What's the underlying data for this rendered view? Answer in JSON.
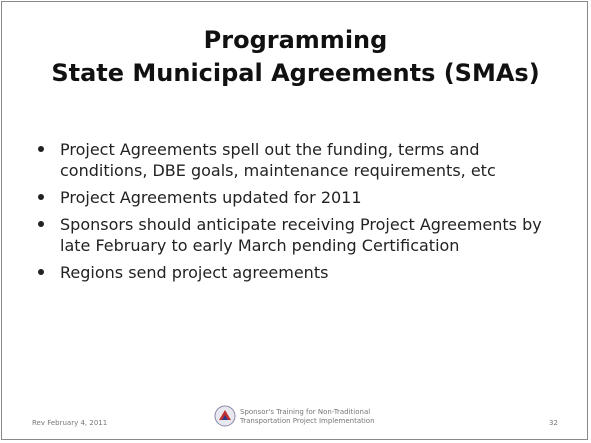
{
  "slide": {
    "title_lines": [
      "Programming",
      "State Municipal Agreements (SMAs)"
    ],
    "bullets": [
      "Project Agreements spell out the funding, terms and conditions, DBE goals, maintenance requirements, etc",
      "Project Agreements updated for 2011",
      "Sponsors should anticipate receiving Project Agreements by late February to early March pending Certification",
      "Regions send project agreements"
    ],
    "footer": {
      "date": "Rev February 4, 2011",
      "center_lines": [
        "Sponsor's Training for Non-Traditional",
        "Transportation Project Implementation"
      ],
      "page": "32"
    }
  }
}
